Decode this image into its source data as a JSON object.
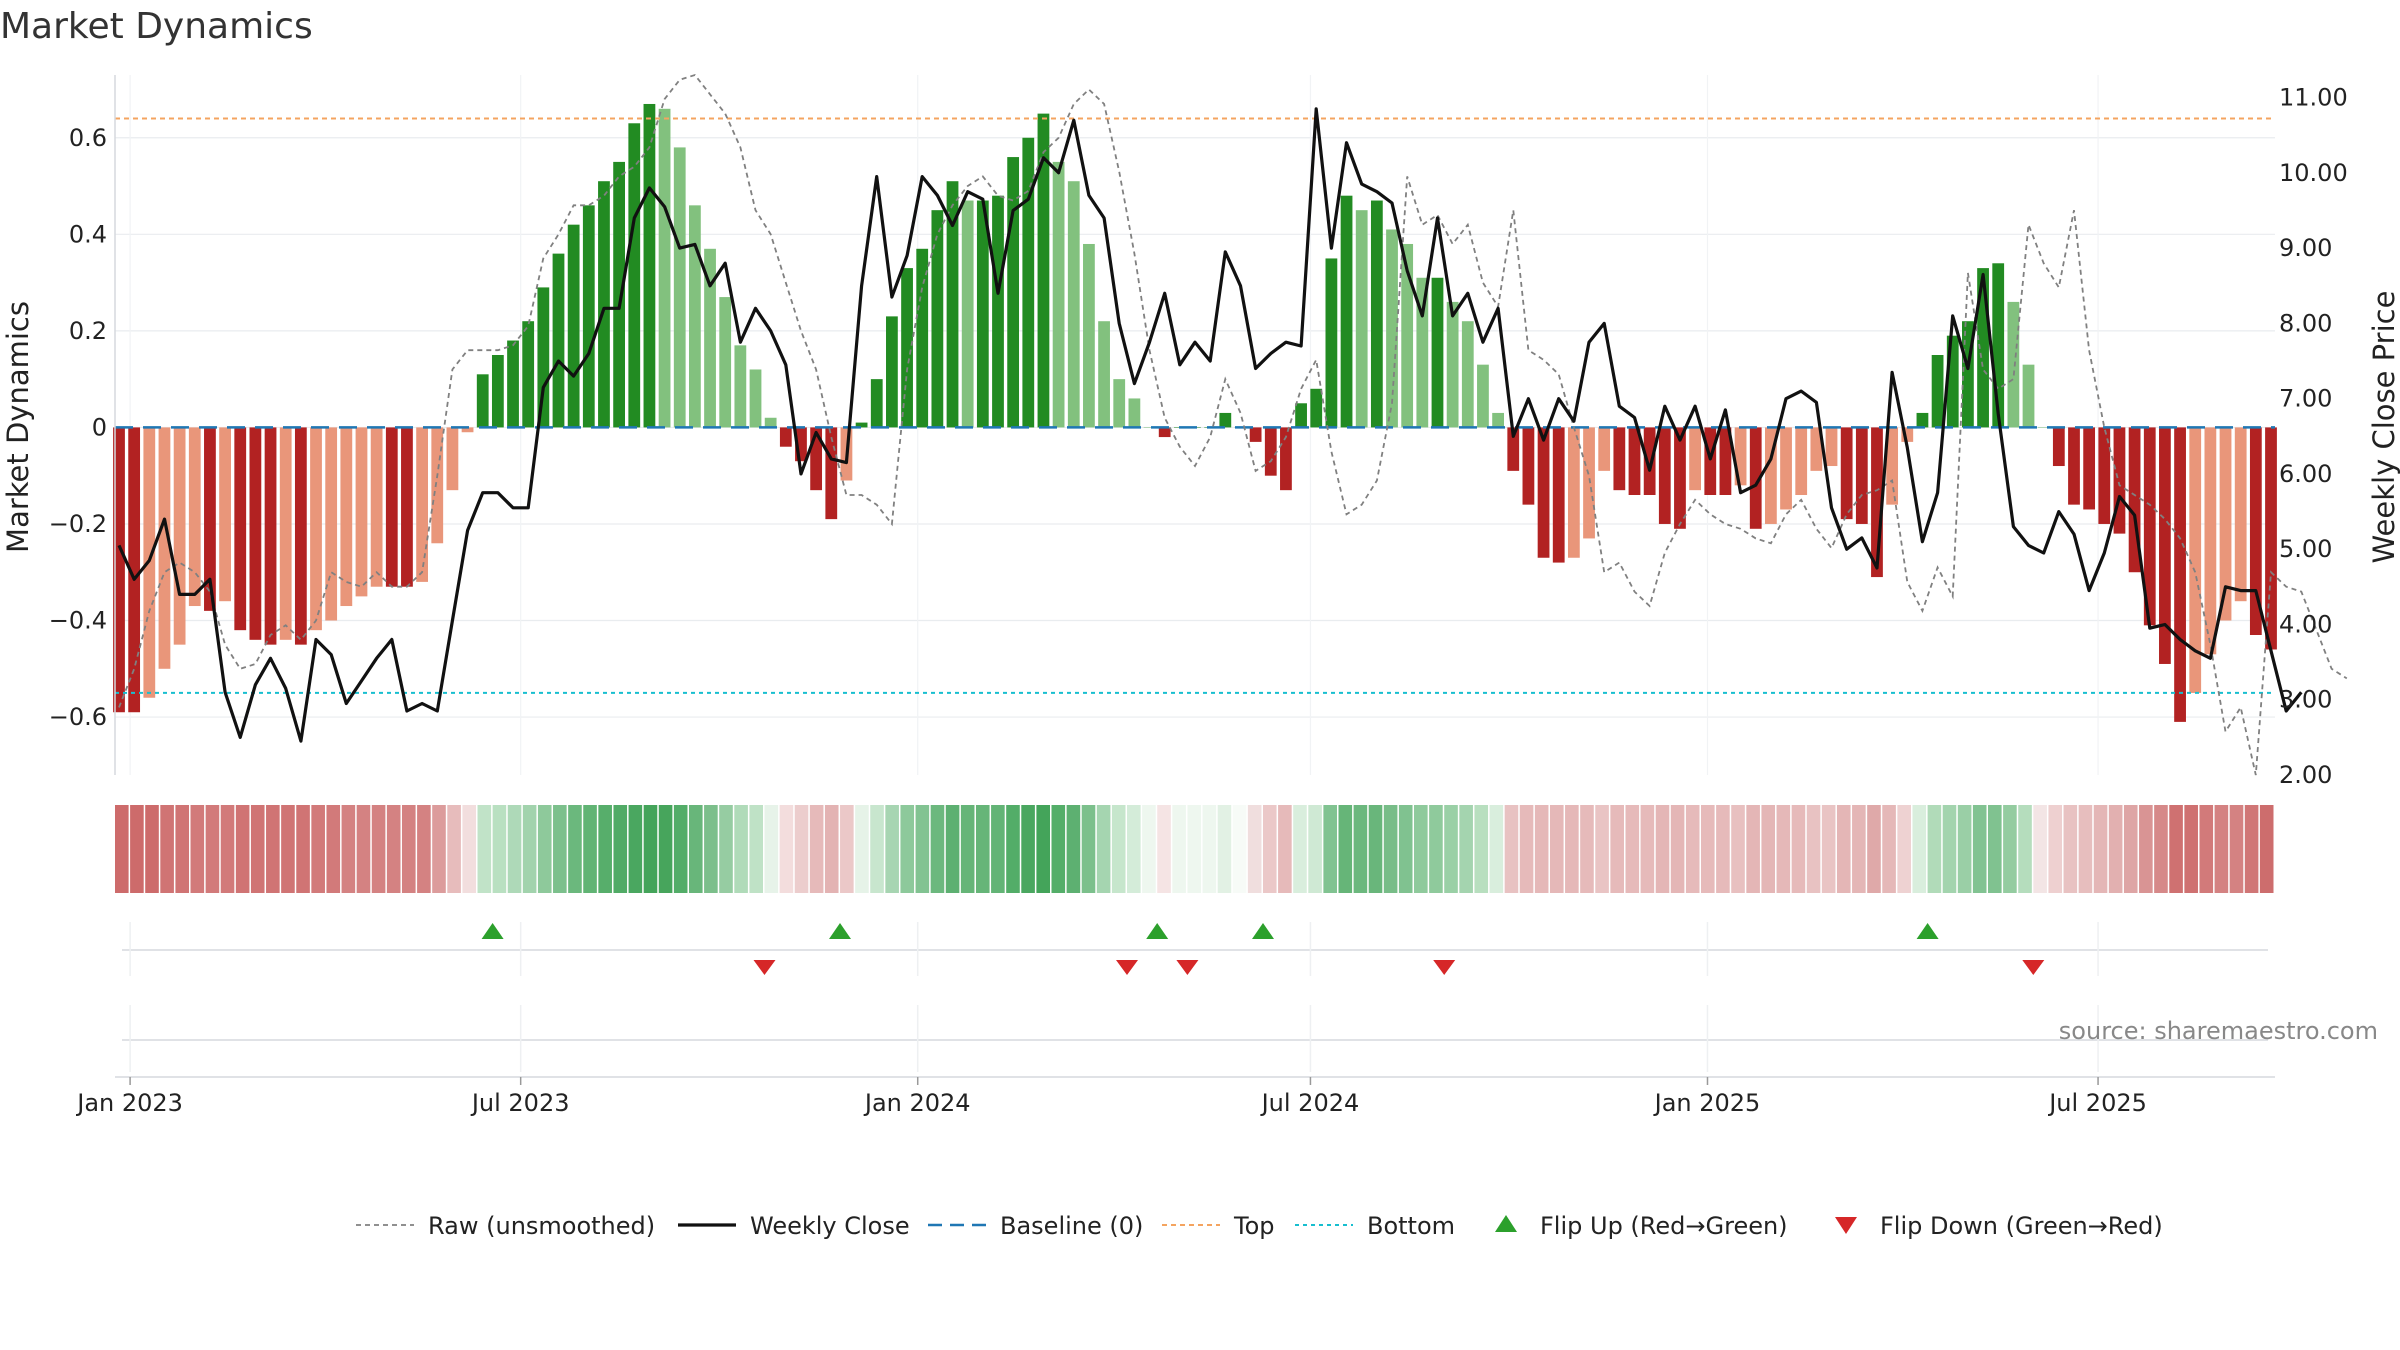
{
  "chart_data": {
    "type": "bar",
    "title": "Market Dynamics",
    "ylabel": "Market Dynamics",
    "y2label": "Weekly Close Price",
    "ylim": [
      -0.72,
      0.73
    ],
    "y2lim": [
      2.0,
      11.3
    ],
    "yticks": [
      -0.6,
      -0.4,
      -0.2,
      0,
      0.2,
      0.4,
      0.6
    ],
    "yticklabels": [
      "−0.6",
      "−0.4",
      "−0.2",
      "0",
      "0.2",
      "0.4",
      "0.6"
    ],
    "y2ticks": [
      2,
      3,
      4,
      5,
      6,
      7,
      8,
      9,
      10,
      11
    ],
    "y2ticklabels": [
      "2.00",
      "3.00",
      "4.00",
      "5.00",
      "6.00",
      "7.00",
      "8.00",
      "9.00",
      "10.00",
      "11.00"
    ],
    "x_start": "2022-12-25",
    "x_end": "2025-09-21",
    "xticks": [
      {
        "date": "2023-01-01",
        "label": "Jan 2023"
      },
      {
        "date": "2023-07-01",
        "label": "Jul 2023"
      },
      {
        "date": "2024-01-01",
        "label": "Jan 2024"
      },
      {
        "date": "2024-07-01",
        "label": "Jul 2024"
      },
      {
        "date": "2025-01-01",
        "label": "Jan 2025"
      },
      {
        "date": "2025-07-01",
        "label": "Jul 2025"
      }
    ],
    "grid": true,
    "top_level": 0.64,
    "bottom_level": -0.55,
    "baseline": 0,
    "series": [
      {
        "name": "Market Dynamics (bars)",
        "values": [
          -0.59,
          -0.59,
          -0.56,
          -0.5,
          -0.45,
          -0.37,
          -0.38,
          -0.36,
          -0.42,
          -0.44,
          -0.45,
          -0.44,
          -0.45,
          -0.42,
          -0.4,
          -0.37,
          -0.35,
          -0.33,
          -0.33,
          -0.33,
          -0.32,
          -0.24,
          -0.13,
          -0.01,
          0.11,
          0.15,
          0.18,
          0.22,
          0.29,
          0.36,
          0.42,
          0.46,
          0.51,
          0.55,
          0.63,
          0.67,
          0.66,
          0.58,
          0.46,
          0.37,
          0.27,
          0.17,
          0.12,
          0.02,
          -0.04,
          -0.07,
          -0.13,
          -0.19,
          -0.11,
          0.01,
          0.1,
          0.23,
          0.33,
          0.37,
          0.45,
          0.51,
          0.47,
          0.47,
          0.48,
          0.56,
          0.6,
          0.65,
          0.55,
          0.51,
          0.38,
          0.22,
          0.1,
          0.06,
          0.0,
          -0.02,
          0.0,
          0.0,
          0.0,
          0.03,
          0.0,
          -0.03,
          -0.1,
          -0.13,
          0.05,
          0.08,
          0.35,
          0.48,
          0.45,
          0.47,
          0.41,
          0.38,
          0.31,
          0.31,
          0.26,
          0.22,
          0.13,
          0.03,
          -0.09,
          -0.16,
          -0.27,
          -0.28,
          -0.27,
          -0.23,
          -0.09,
          -0.13,
          -0.14,
          -0.14,
          -0.2,
          -0.21,
          -0.13,
          -0.14,
          -0.14,
          -0.12,
          -0.21,
          -0.2,
          -0.17,
          -0.14,
          -0.09,
          -0.08,
          -0.19,
          -0.2,
          -0.31,
          -0.16,
          -0.03,
          0.03,
          0.15,
          0.19,
          0.22,
          0.33,
          0.34,
          0.26,
          0.13,
          0.0,
          -0.08,
          -0.16,
          -0.17,
          -0.2,
          -0.22,
          -0.3,
          -0.41,
          -0.49,
          -0.61,
          -0.55,
          -0.47,
          -0.4,
          -0.36,
          -0.43,
          -0.46
        ]
      },
      {
        "name": "Raw (unsmoothed)",
        "values": [
          -0.58,
          -0.5,
          -0.38,
          -0.3,
          -0.28,
          -0.3,
          -0.34,
          -0.45,
          -0.5,
          -0.49,
          -0.43,
          -0.41,
          -0.44,
          -0.4,
          -0.3,
          -0.32,
          -0.33,
          -0.3,
          -0.33,
          -0.33,
          -0.3,
          -0.1,
          0.12,
          0.16,
          0.16,
          0.16,
          0.17,
          0.21,
          0.35,
          0.4,
          0.46,
          0.46,
          0.48,
          0.52,
          0.54,
          0.58,
          0.68,
          0.72,
          0.73,
          0.69,
          0.65,
          0.58,
          0.45,
          0.4,
          0.3,
          0.2,
          0.12,
          -0.02,
          -0.14,
          -0.14,
          -0.16,
          -0.2,
          0.12,
          0.29,
          0.4,
          0.46,
          0.5,
          0.52,
          0.48,
          0.47,
          0.49,
          0.57,
          0.6,
          0.67,
          0.7,
          0.67,
          0.53,
          0.36,
          0.16,
          0.02,
          -0.04,
          -0.08,
          -0.02,
          0.1,
          0.03,
          -0.09,
          -0.07,
          -0.02,
          0.08,
          0.14,
          -0.05,
          -0.18,
          -0.16,
          -0.11,
          0.05,
          0.52,
          0.42,
          0.44,
          0.38,
          0.42,
          0.3,
          0.25,
          0.45,
          0.16,
          0.14,
          0.11,
          0.0,
          -0.1,
          -0.3,
          -0.28,
          -0.34,
          -0.37,
          -0.26,
          -0.2,
          -0.15,
          -0.18,
          -0.2,
          -0.21,
          -0.23,
          -0.24,
          -0.18,
          -0.15,
          -0.21,
          -0.25,
          -0.18,
          -0.14,
          -0.13,
          -0.11,
          -0.32,
          -0.38,
          -0.29,
          -0.35,
          0.32,
          0.12,
          0.08,
          0.1,
          0.42,
          0.34,
          0.29,
          0.45,
          0.16,
          0.0,
          -0.12,
          -0.14,
          -0.16,
          -0.19,
          -0.23,
          -0.3,
          -0.45,
          -0.63,
          -0.58,
          -0.72,
          -0.3,
          -0.33,
          -0.34,
          -0.42,
          -0.5,
          -0.52
        ]
      },
      {
        "name": "Weekly Close",
        "values": [
          5.05,
          4.6,
          4.85,
          5.4,
          4.4,
          4.4,
          4.6,
          3.1,
          2.5,
          3.2,
          3.55,
          3.15,
          2.45,
          3.8,
          3.6,
          2.95,
          3.25,
          3.55,
          3.8,
          2.85,
          2.95,
          2.85,
          4.05,
          5.25,
          5.75,
          5.75,
          5.55,
          5.55,
          7.15,
          7.5,
          7.3,
          7.6,
          8.2,
          8.2,
          9.4,
          9.8,
          9.55,
          9.0,
          9.05,
          8.5,
          8.8,
          7.75,
          8.2,
          7.9,
          7.45,
          6.0,
          6.55,
          6.2,
          6.15,
          8.5,
          9.95,
          8.35,
          8.9,
          9.95,
          9.7,
          9.3,
          9.75,
          9.65,
          8.4,
          9.5,
          9.65,
          10.2,
          10.0,
          10.7,
          9.7,
          9.4,
          8.0,
          7.2,
          7.75,
          8.4,
          7.45,
          7.75,
          7.5,
          8.95,
          8.5,
          7.4,
          7.6,
          7.75,
          7.7,
          10.85,
          9.0,
          10.4,
          9.85,
          9.75,
          9.6,
          8.7,
          8.1,
          9.4,
          8.1,
          8.4,
          7.75,
          8.2,
          6.5,
          7.0,
          6.45,
          7.0,
          6.7,
          7.75,
          8.0,
          6.9,
          6.75,
          6.05,
          6.9,
          6.45,
          6.9,
          6.2,
          6.85,
          5.75,
          5.85,
          6.2,
          7.0,
          7.1,
          6.95,
          5.55,
          5.0,
          5.15,
          4.75,
          7.35,
          6.35,
          5.1,
          5.75,
          8.1,
          7.4,
          8.65,
          6.8,
          5.3,
          5.05,
          4.95,
          5.5,
          5.2,
          4.45,
          4.95,
          5.7,
          5.45,
          3.95,
          4.0,
          3.8,
          3.65,
          3.55,
          4.5,
          4.45,
          4.45,
          3.65,
          2.85,
          3.1
        ]
      }
    ],
    "strip_colors": [
      "#cd6b6b",
      "#cd6b6b",
      "#cd6b6b",
      "#d07474",
      "#d07474",
      "#d27a7a",
      "#d27a7a",
      "#d27a7a",
      "#d07474",
      "#d07474",
      "#d07474",
      "#d07474",
      "#d07474",
      "#d27a7a",
      "#d27a7a",
      "#d48282",
      "#d48282",
      "#d48282",
      "#d48282",
      "#d48282",
      "#d48282",
      "#dc9c9c",
      "#e7bcbc",
      "#f2dede",
      "#c1e3c8",
      "#b9e0c1",
      "#aed9b8",
      "#a2d3ad",
      "#8ec99b",
      "#7cc08c",
      "#6bb87d",
      "#61b474",
      "#57ae6b",
      "#51ab66",
      "#4aa760",
      "#44a45a",
      "#47a55c",
      "#53ad68",
      "#68b67a",
      "#7cbf8b",
      "#96cca2",
      "#b0dbb9",
      "#bfe2c6",
      "#e7f3e9",
      "#f3dddd",
      "#eccdcd",
      "#e6baba",
      "#e3b3b3",
      "#ebc8c8",
      "#e6f3e8",
      "#c8e6ce",
      "#a7d5b2",
      "#8dc99b",
      "#82c392",
      "#6cb87e",
      "#5db071",
      "#66b578",
      "#66b578",
      "#63b476",
      "#53ad68",
      "#4aa760",
      "#44a45a",
      "#54ae69",
      "#5db071",
      "#7cc08c",
      "#a5d5b0",
      "#c6e6cc",
      "#d4ecd9",
      "#eef7ef",
      "#f5e4e4",
      "#eef7ef",
      "#eef7ef",
      "#eef7ef",
      "#e2f1e4",
      "#f7fbf7",
      "#f0dede",
      "#ebc8c8",
      "#e6baba",
      "#d9eedd",
      "#cfe9d4",
      "#81c391",
      "#66b578",
      "#6cb87e",
      "#69b67b",
      "#78bd88",
      "#80c290",
      "#8fca9c",
      "#8fca9c",
      "#9ad0a6",
      "#a4d4af",
      "#b8dfbf",
      "#d9eedd",
      "#e8c2c2",
      "#e6baba",
      "#e5b8b8",
      "#e5b8b8",
      "#e5b8b8",
      "#e6baba",
      "#e9c4c4",
      "#e6baba",
      "#e6baba",
      "#e6baba",
      "#e4b6b6",
      "#e4b6b6",
      "#e6baba",
      "#e6baba",
      "#e6baba",
      "#e8c0c0",
      "#e4b6b6",
      "#e4b6b6",
      "#e5b8b8",
      "#e6baba",
      "#e8c2c2",
      "#e9c4c4",
      "#e4b6b6",
      "#e4b6b6",
      "#dfa9a9",
      "#e5b8b8",
      "#eed2d2",
      "#d9eedd",
      "#b1dbb9",
      "#a3d4ae",
      "#9acfa6",
      "#82c392",
      "#80c290",
      "#94cca0",
      "#b5ddbd",
      "#f3e5e5",
      "#eed0d0",
      "#e8c2c2",
      "#e7bebe",
      "#e4b6b6",
      "#e2b0b0",
      "#dea5a5",
      "#d99494",
      "#d68989",
      "#cf7171",
      "#cf7171",
      "#d27a7a",
      "#d48282",
      "#d48282",
      "#d07676",
      "#cd6d6d"
    ],
    "flip_up_dates": [
      "2023-06-18",
      "2023-11-26",
      "2024-04-21",
      "2024-06-09",
      "2025-04-13"
    ],
    "flip_down_dates": [
      "2023-10-22",
      "2024-04-07",
      "2024-05-05",
      "2024-09-01",
      "2025-06-01"
    ],
    "legend": [
      "Raw (unsmoothed)",
      "Weekly Close",
      "Baseline (0)",
      "Top",
      "Bottom",
      "Flip Up (Red→Green)",
      "Flip Down (Green→Red)"
    ],
    "legend_position": "bottom-center",
    "colors": {
      "bar_green_strong": "#228b22",
      "bar_green_light": "#82c17e",
      "bar_red_strong": "#b22222",
      "bar_red_light": "#e9967a",
      "raw": "#808080",
      "close": "#111111",
      "baseline": "#1f77b4",
      "top": "#f4a460",
      "bottom": "#17becf",
      "flip_up": "#2ca02c",
      "flip_down": "#d62728"
    }
  },
  "source": "source: sharemaestro.com"
}
